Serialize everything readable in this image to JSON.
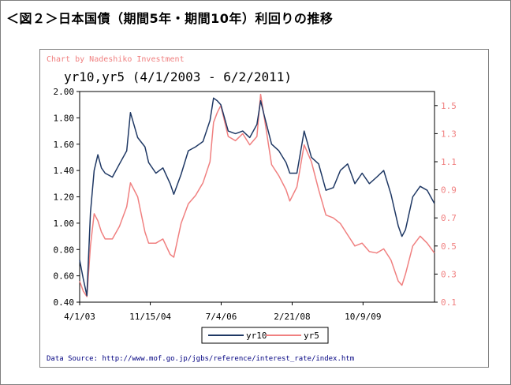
{
  "page": {
    "title": "＜図２＞日本国債（期間5年・期間10年）利回りの推移"
  },
  "chart_data": {
    "type": "line",
    "title": "yr10,yr5 (4/1/2003 - 6/2/2011)",
    "credit": "Chart by Nadeshiko Investment",
    "source": "Data Source: http://www.mof.go.jp/jgbs/reference/interest_rate/index.htm",
    "xlabel": "",
    "x_ticks": [
      "4/1/03",
      "11/15/04",
      "7/4/06",
      "2/21/08",
      "10/9/09"
    ],
    "xlim": [
      "4/1/03",
      "6/2/11"
    ],
    "ylim_left": [
      0.4,
      2.0
    ],
    "y_ticks_left": [
      "0.40",
      "0.60",
      "0.80",
      "1.00",
      "1.20",
      "1.40",
      "1.60",
      "1.80",
      "2.00"
    ],
    "ylim_right": [
      0.1,
      1.6
    ],
    "y_ticks_right": [
      "0.1",
      "0.3",
      "0.5",
      "0.7",
      "0.9",
      "1.1",
      "1.3",
      "1.5"
    ],
    "grid": false,
    "legend": "bottom",
    "x": [
      "4/03",
      "5/03",
      "6/03",
      "7/03",
      "8/03",
      "9/03",
      "10/03",
      "11/03",
      "1/04",
      "3/04",
      "5/04",
      "6/04",
      "8/04",
      "10/04",
      "11/04",
      "1/05",
      "3/05",
      "5/05",
      "6/05",
      "8/05",
      "10/05",
      "12/05",
      "2/06",
      "4/06",
      "5/06",
      "6/06",
      "7/06",
      "9/06",
      "11/06",
      "1/07",
      "3/07",
      "5/07",
      "6/07",
      "7/07",
      "9/07",
      "11/07",
      "1/08",
      "2/08",
      "4/08",
      "6/08",
      "8/08",
      "10/08",
      "12/08",
      "2/09",
      "4/09",
      "6/09",
      "8/09",
      "10/09",
      "12/09",
      "2/10",
      "4/10",
      "6/10",
      "8/10",
      "9/10",
      "10/10",
      "12/10",
      "2/11",
      "4/11",
      "6/11"
    ],
    "series": [
      {
        "name": "yr10",
        "axis": "left",
        "color": "#1f3864",
        "values": [
          0.72,
          0.58,
          0.45,
          1.08,
          1.4,
          1.52,
          1.42,
          1.38,
          1.35,
          1.45,
          1.55,
          1.84,
          1.65,
          1.58,
          1.46,
          1.38,
          1.42,
          1.3,
          1.22,
          1.37,
          1.55,
          1.58,
          1.62,
          1.78,
          1.95,
          1.93,
          1.9,
          1.7,
          1.68,
          1.7,
          1.65,
          1.75,
          1.93,
          1.82,
          1.6,
          1.55,
          1.46,
          1.38,
          1.38,
          1.7,
          1.5,
          1.45,
          1.25,
          1.27,
          1.4,
          1.45,
          1.3,
          1.38,
          1.3,
          1.35,
          1.4,
          1.22,
          0.98,
          0.9,
          0.95,
          1.2,
          1.28,
          1.25,
          1.15
        ]
      },
      {
        "name": "yr5",
        "axis": "right",
        "color": "#f08080",
        "values": [
          0.25,
          0.18,
          0.14,
          0.5,
          0.73,
          0.68,
          0.6,
          0.55,
          0.55,
          0.64,
          0.78,
          0.95,
          0.85,
          0.6,
          0.52,
          0.52,
          0.55,
          0.44,
          0.42,
          0.66,
          0.8,
          0.86,
          0.95,
          1.1,
          1.38,
          1.45,
          1.5,
          1.28,
          1.25,
          1.3,
          1.22,
          1.28,
          1.58,
          1.42,
          1.08,
          1.0,
          0.9,
          0.82,
          0.92,
          1.22,
          1.1,
          0.9,
          0.72,
          0.7,
          0.66,
          0.58,
          0.5,
          0.52,
          0.46,
          0.45,
          0.48,
          0.4,
          0.25,
          0.22,
          0.3,
          0.5,
          0.57,
          0.52,
          0.45
        ]
      }
    ]
  }
}
